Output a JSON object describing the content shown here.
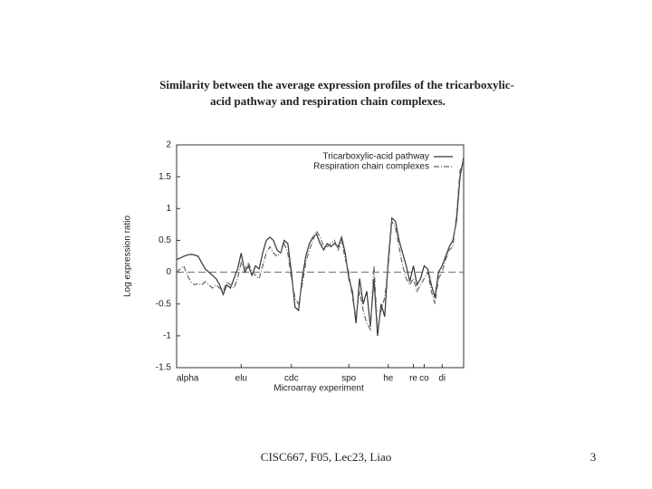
{
  "chart_data": {
    "type": "line",
    "title": [
      "Similarity between the average expression profiles of the tricarboxylic-",
      "acid pathway and respiration chain complexes."
    ],
    "ylabel": "Log expression ratio",
    "xlabel": "Microarray experiment",
    "x": [
      0,
      1,
      2,
      3,
      4,
      5,
      6,
      7,
      8,
      9,
      10,
      11,
      12,
      13,
      14,
      15,
      16,
      17,
      18,
      19,
      20,
      21,
      22,
      23,
      24,
      25,
      26,
      27,
      28,
      29,
      30,
      31,
      32,
      33,
      34,
      35,
      36,
      37,
      38,
      39,
      40,
      41,
      42,
      43,
      44,
      45,
      46,
      47,
      48,
      49,
      50,
      51,
      52,
      53,
      54,
      55,
      56,
      57,
      58,
      59,
      60,
      61,
      62,
      63,
      64,
      65,
      66,
      67,
      68,
      69,
      70,
      71,
      72,
      73,
      74,
      75,
      76,
      77,
      78,
      79,
      80
    ],
    "series": [
      {
        "name": "Tricarboxylic-acid pathway",
        "color": "#333333",
        "dash": "solid",
        "values": [
          0.2,
          0.22,
          0.25,
          0.27,
          0.28,
          0.27,
          0.25,
          0.15,
          0.05,
          0.0,
          -0.05,
          -0.1,
          -0.2,
          -0.35,
          -0.2,
          -0.25,
          -0.1,
          0.05,
          0.3,
          0.0,
          0.1,
          -0.05,
          0.1,
          0.05,
          0.3,
          0.5,
          0.55,
          0.5,
          0.35,
          0.3,
          0.5,
          0.45,
          0.0,
          -0.55,
          -0.6,
          -0.1,
          0.25,
          0.45,
          0.55,
          0.6,
          0.45,
          0.35,
          0.45,
          0.4,
          0.45,
          0.4,
          0.55,
          0.3,
          -0.1,
          -0.3,
          -0.8,
          -0.1,
          -0.5,
          -0.3,
          -0.85,
          -0.1,
          -1.0,
          -0.5,
          -0.7,
          0.2,
          0.85,
          0.8,
          0.5,
          0.3,
          0.1,
          -0.15,
          0.1,
          -0.2,
          -0.1,
          0.1,
          0.05,
          -0.2,
          -0.4,
          0.0,
          0.1,
          0.25,
          0.4,
          0.5,
          0.8,
          1.5,
          1.8
        ]
      },
      {
        "name": "Respiration chain complexes",
        "color": "#666666",
        "dash": "dashdot",
        "values": [
          0.0,
          0.05,
          0.1,
          -0.05,
          -0.15,
          -0.2,
          -0.18,
          -0.2,
          -0.15,
          -0.2,
          -0.25,
          -0.2,
          -0.25,
          -0.3,
          -0.15,
          -0.2,
          -0.25,
          -0.1,
          0.15,
          0.05,
          0.15,
          0.0,
          -0.05,
          -0.1,
          0.1,
          0.3,
          0.4,
          0.3,
          0.25,
          0.3,
          0.45,
          0.3,
          -0.1,
          -0.4,
          -0.5,
          -0.2,
          0.15,
          0.35,
          0.5,
          0.65,
          0.55,
          0.4,
          0.4,
          0.45,
          0.5,
          0.35,
          0.5,
          0.2,
          0.0,
          -0.4,
          -0.7,
          -0.3,
          -0.6,
          -0.8,
          -0.9,
          0.1,
          -0.9,
          -0.6,
          -0.4,
          0.1,
          0.8,
          0.7,
          0.4,
          0.1,
          -0.1,
          -0.2,
          -0.1,
          -0.3,
          -0.2,
          -0.1,
          0.0,
          -0.3,
          -0.5,
          -0.1,
          0.0,
          0.2,
          0.35,
          0.4,
          0.9,
          1.6,
          1.75
        ]
      }
    ],
    "xlim": [
      0,
      80
    ],
    "xticks": [
      {
        "value": 0,
        "label": "alpha"
      },
      {
        "value": 18,
        "label": "elu"
      },
      {
        "value": 32,
        "label": "cdc"
      },
      {
        "value": 48,
        "label": "spo"
      },
      {
        "value": 59,
        "label": "he"
      },
      {
        "value": 66,
        "label": "re"
      },
      {
        "value": 69,
        "label": "co"
      },
      {
        "value": 74,
        "label": "di"
      }
    ],
    "ylim": [
      -1.5,
      2
    ],
    "yticks": [
      -1.5,
      -1,
      -0.5,
      0,
      0.5,
      1,
      1.5,
      2
    ],
    "zero_line": true,
    "legend": "top-right"
  },
  "footer": {
    "text": "CISC667, F05, Lec23, Liao",
    "page": "3"
  }
}
